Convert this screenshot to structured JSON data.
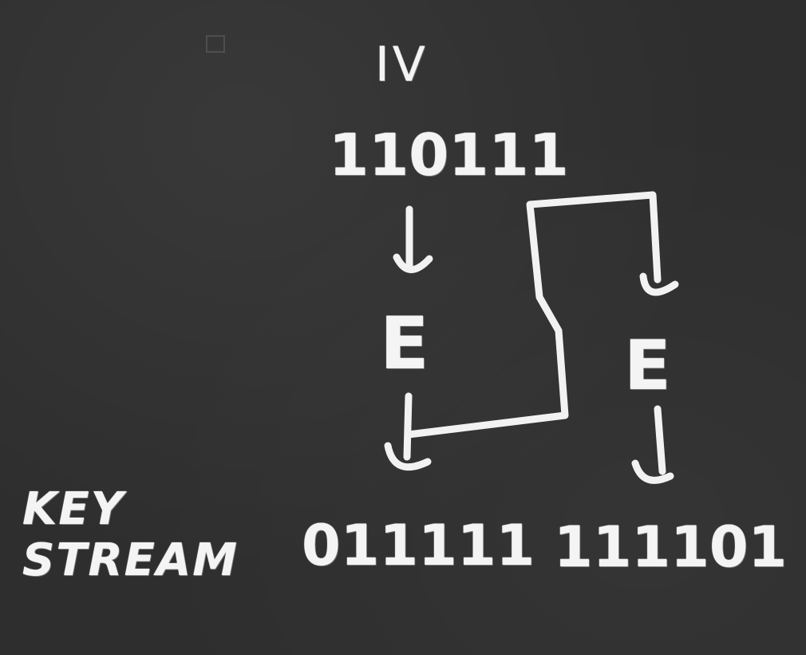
{
  "diagram": {
    "iv_label": "IV",
    "iv_bits": "110111",
    "encrypt_left": "E",
    "encrypt_right": "E",
    "keystream_block_1": "011111",
    "keystream_block_2": "111101",
    "keystream_label": "KEY STREAM"
  },
  "colors": {
    "board": "#2e2e2e",
    "chalk": "#f4f4f4"
  }
}
